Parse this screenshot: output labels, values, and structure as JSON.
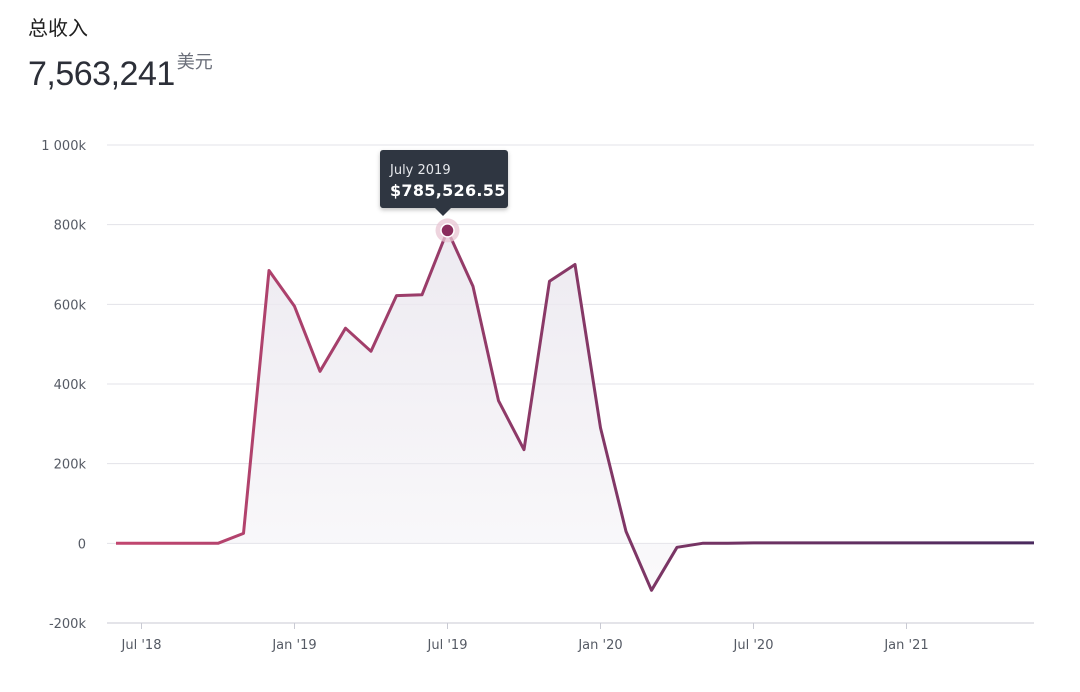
{
  "header": {
    "label": "总收入",
    "value": "7,563,241",
    "unit": "美元"
  },
  "tooltip": {
    "date": "July 2019",
    "value": "$785,526.55"
  },
  "colors": {
    "line_start": "#c2466f",
    "line_end": "#4a2a5e",
    "area_fill": "#ece9f0",
    "grid": "#e3e3e8",
    "tooltip_bg": "#2f3641"
  },
  "chart_data": {
    "type": "area",
    "title": "",
    "xlabel": "",
    "ylabel": "",
    "ylim": [
      -200000,
      1000000
    ],
    "y_ticks": [
      {
        "value": 1000000,
        "label": "1 000k"
      },
      {
        "value": 800000,
        "label": "800k"
      },
      {
        "value": 600000,
        "label": "600k"
      },
      {
        "value": 400000,
        "label": "400k"
      },
      {
        "value": 200000,
        "label": "200k"
      },
      {
        "value": 0,
        "label": "0"
      },
      {
        "value": -200000,
        "label": "-200k"
      }
    ],
    "x_ticks": [
      {
        "month": "2018-07",
        "label": "Jul '18"
      },
      {
        "month": "2019-01",
        "label": "Jan '19"
      },
      {
        "month": "2019-07",
        "label": "Jul '19"
      },
      {
        "month": "2020-01",
        "label": "Jan '20"
      },
      {
        "month": "2020-07",
        "label": "Jul '20"
      },
      {
        "month": "2021-01",
        "label": "Jan '21"
      }
    ],
    "grid": true,
    "series": [
      {
        "x": [
          "2018-06",
          "2018-07",
          "2018-08",
          "2018-09",
          "2018-10",
          "2018-11",
          "2018-12",
          "2019-01",
          "2019-02",
          "2019-03",
          "2019-04",
          "2019-05",
          "2019-06",
          "2019-07",
          "2019-08",
          "2019-09",
          "2019-10",
          "2019-11",
          "2019-12",
          "2020-01",
          "2020-02",
          "2020-03",
          "2020-04",
          "2020-05",
          "2020-06",
          "2020-07",
          "2020-08",
          "2020-09",
          "2020-10",
          "2020-11",
          "2020-12",
          "2021-01",
          "2021-02",
          "2021-03",
          "2021-04",
          "2021-05",
          "2021-06"
        ],
        "values": [
          0,
          0,
          0,
          0,
          0,
          25000,
          685000,
          595000,
          432000,
          540000,
          482000,
          622000,
          624000,
          785526.55,
          645000,
          358000,
          235000,
          658000,
          700000,
          290000,
          30000,
          -118000,
          -10000,
          0,
          0,
          1000,
          1000,
          1000,
          1000,
          1000,
          1000,
          1000,
          1000,
          1000,
          1000,
          1000,
          1000
        ]
      }
    ],
    "highlight": {
      "month": "2019-07",
      "value": 785526.55
    }
  }
}
